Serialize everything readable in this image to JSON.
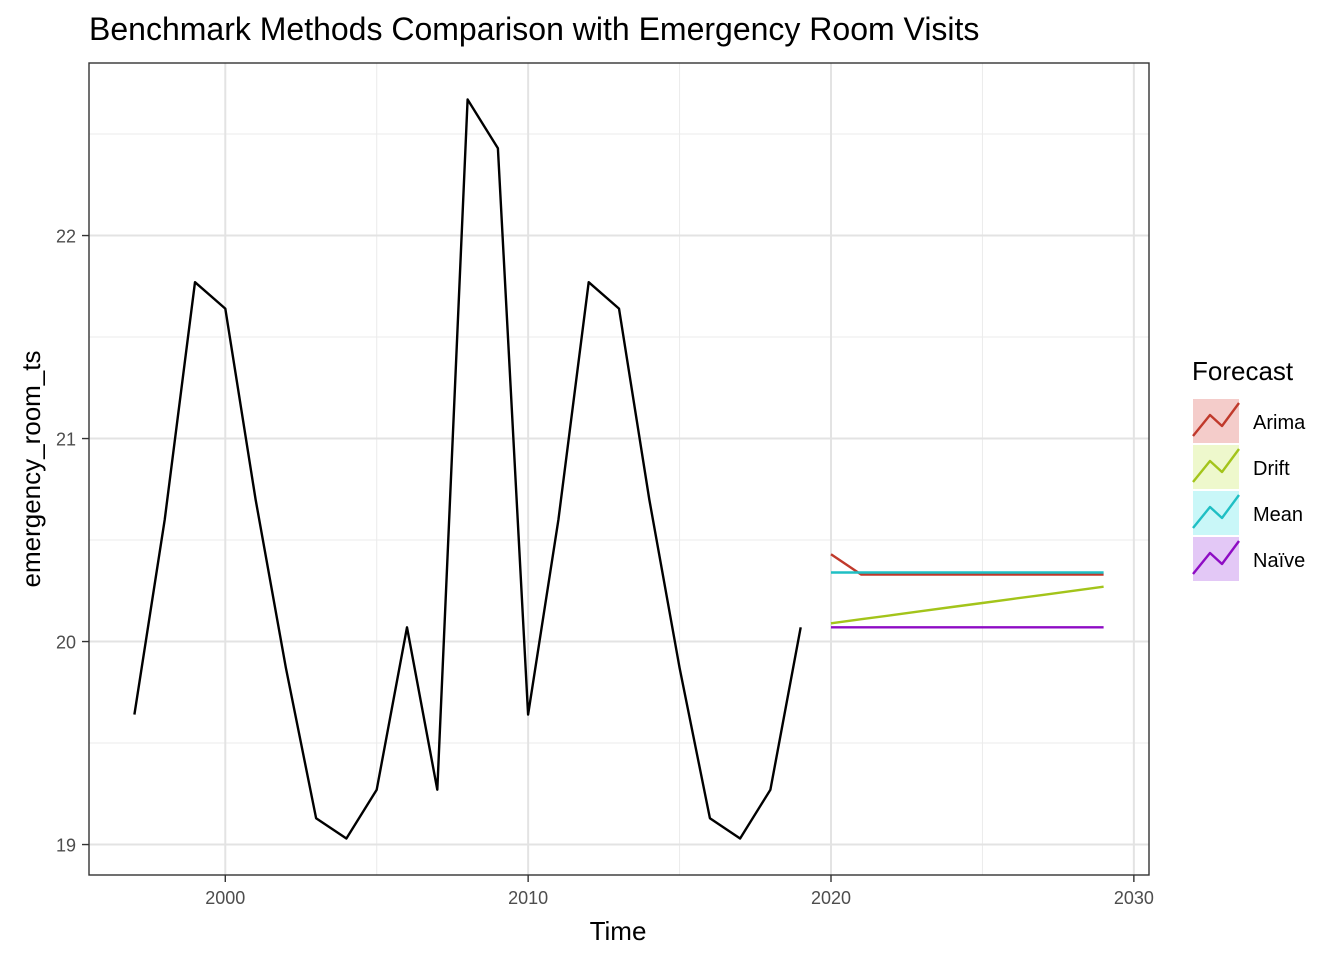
{
  "chart_data": {
    "type": "line",
    "title": "Benchmark Methods Comparison with Emergency Room Visits",
    "xlabel": "Time",
    "ylabel": "emergency_room_ts",
    "xlim": [
      1995.5,
      2030.5
    ],
    "ylim": [
      18.85,
      22.85
    ],
    "x_ticks": [
      2000,
      2010,
      2020,
      2030
    ],
    "x_tick_labels": [
      "2000",
      "2010",
      "2020",
      "2030"
    ],
    "y_ticks": [
      19,
      20,
      21,
      22
    ],
    "y_tick_labels": [
      "19",
      "20",
      "21",
      "22"
    ],
    "grid": true,
    "observed": {
      "color": "#000000",
      "x": [
        1997,
        1998,
        1999,
        2000,
        2001,
        2002,
        2003,
        2004,
        2005,
        2006,
        2007,
        2008,
        2009,
        2010,
        2011,
        2012,
        2013,
        2014,
        2015,
        2016,
        2017,
        2018,
        2019
      ],
      "values": [
        19.64,
        20.6,
        21.77,
        21.64,
        20.7,
        19.87,
        19.13,
        19.03,
        19.27,
        20.07,
        19.27,
        22.67,
        22.43,
        19.64,
        20.6,
        21.77,
        21.64,
        20.7,
        19.87,
        19.13,
        19.03,
        19.27,
        20.07
      ]
    },
    "forecast_x": [
      2020,
      2021,
      2022,
      2023,
      2024,
      2025,
      2026,
      2027,
      2028,
      2029
    ],
    "legend": {
      "title": "Forecast",
      "position": "right"
    },
    "series": [
      {
        "name": "Arima",
        "color": "#C0392B",
        "fill": "#F4CCCA",
        "values": [
          20.43,
          20.33,
          20.33,
          20.33,
          20.33,
          20.33,
          20.33,
          20.33,
          20.33,
          20.33
        ]
      },
      {
        "name": "Drift",
        "color": "#A3C41A",
        "fill": "#EEF8CC",
        "values": [
          20.09,
          20.11,
          20.13,
          20.15,
          20.17,
          20.19,
          20.21,
          20.23,
          20.25,
          20.27
        ]
      },
      {
        "name": "Mean",
        "color": "#1FBFC4",
        "fill": "#C9F7F8",
        "values": [
          20.34,
          20.34,
          20.34,
          20.34,
          20.34,
          20.34,
          20.34,
          20.34,
          20.34,
          20.34
        ]
      },
      {
        "name": "Naïve",
        "color": "#8E0CC4",
        "fill": "#E3C8F6",
        "values": [
          20.07,
          20.07,
          20.07,
          20.07,
          20.07,
          20.07,
          20.07,
          20.07,
          20.07,
          20.07
        ]
      }
    ]
  }
}
